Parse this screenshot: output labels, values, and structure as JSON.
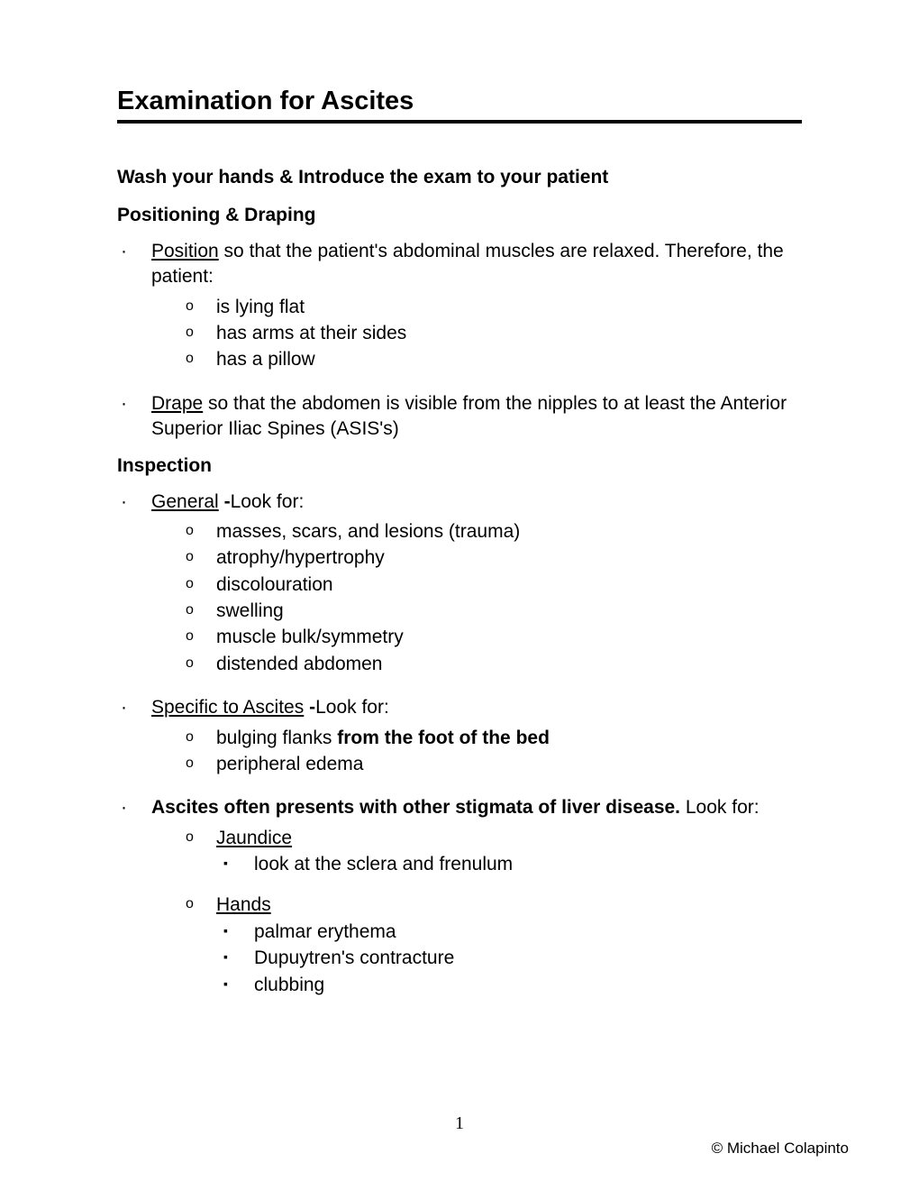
{
  "title": "Examination for Ascites",
  "sections": {
    "wash": "Wash your hands & Introduce the exam to your patient",
    "positioning": {
      "heading": "Positioning & Draping",
      "position_label": "Position",
      "position_text": " so that the patient's abdominal muscles are relaxed. Therefore, the patient:",
      "position_subs": [
        "is lying flat",
        "has arms at their sides",
        "has a pillow"
      ],
      "drape_label": "Drape",
      "drape_text": " so that the abdomen is visible from the nipples to at least the Anterior Superior Iliac Spines (ASIS's)"
    },
    "inspection": {
      "heading": "Inspection",
      "general_label": "General",
      "general_suffix": "Look for:",
      "general_subs": [
        "masses, scars, and lesions (trauma)",
        "atrophy/hypertrophy",
        "discolouration",
        "swelling",
        "muscle bulk/symmetry",
        "distended abdomen"
      ],
      "specific_label": "Specific to Ascites",
      "specific_suffix": "Look for:",
      "specific_sub1_a": "bulging flanks ",
      "specific_sub1_b": "from the foot of the bed",
      "specific_sub2": "peripheral edema",
      "stigmata_bold": "Ascites often presents with other stigmata of liver disease.",
      "stigmata_suffix": "Look for:",
      "jaundice_label": "Jaundice",
      "jaundice_subs": [
        "look at the sclera and frenulum"
      ],
      "hands_label": "Hands",
      "hands_subs": [
        "palmar erythema",
        "Dupuytren's contracture",
        "clubbing"
      ]
    }
  },
  "page_number": "1",
  "copyright": "© Michael Colapinto"
}
